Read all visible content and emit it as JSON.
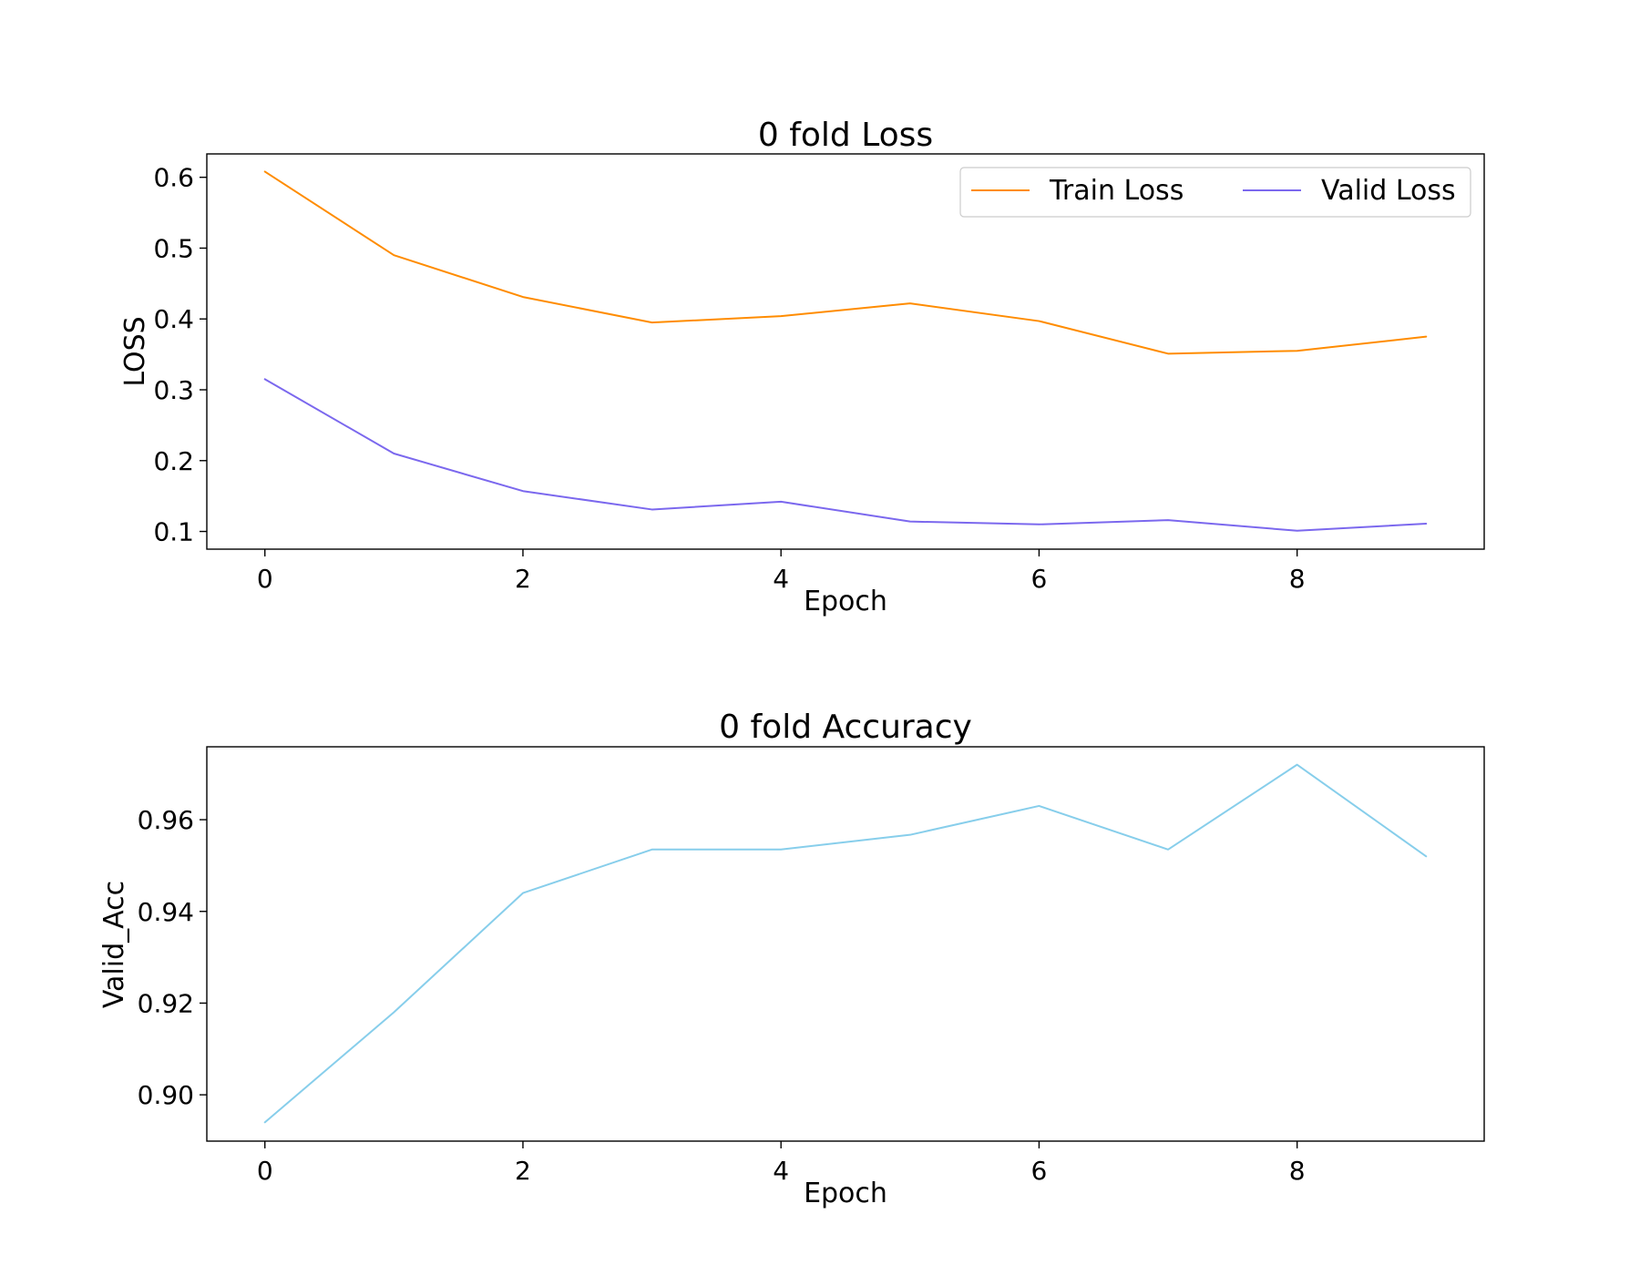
{
  "chart_data": [
    {
      "type": "line",
      "title": "0 fold Loss",
      "xlabel": "Epoch",
      "ylabel": "LOSS",
      "x": [
        0,
        1,
        2,
        3,
        4,
        5,
        6,
        7,
        8,
        9
      ],
      "xlim": [
        -0.45,
        9.45
      ],
      "ylim": [
        0.075,
        0.633
      ],
      "xticks": [
        0,
        2,
        4,
        6,
        8
      ],
      "yticks": [
        0.1,
        0.2,
        0.3,
        0.4,
        0.5,
        0.6
      ],
      "ytick_labels": [
        "0.1",
        "0.2",
        "0.3",
        "0.4",
        "0.5",
        "0.6"
      ],
      "grid": false,
      "legend": "top-right",
      "series": [
        {
          "name": "Train Loss",
          "color": "#ff8c00",
          "values": [
            0.608,
            0.49,
            0.431,
            0.395,
            0.404,
            0.422,
            0.397,
            0.351,
            0.355,
            0.375
          ]
        },
        {
          "name": "Valid Loss",
          "color": "#7b68ee",
          "values": [
            0.315,
            0.21,
            0.157,
            0.131,
            0.142,
            0.114,
            0.11,
            0.116,
            0.101,
            0.111
          ]
        }
      ]
    },
    {
      "type": "line",
      "title": "0 fold Accuracy",
      "xlabel": "Epoch",
      "ylabel": "Valid_Acc",
      "x": [
        0,
        1,
        2,
        3,
        4,
        5,
        6,
        7,
        8,
        9
      ],
      "xlim": [
        -0.45,
        9.45
      ],
      "ylim": [
        0.8899,
        0.9759
      ],
      "xticks": [
        0,
        2,
        4,
        6,
        8
      ],
      "yticks": [
        0.9,
        0.92,
        0.94,
        0.96
      ],
      "ytick_labels": [
        "0.90",
        "0.92",
        "0.94",
        "0.96"
      ],
      "grid": false,
      "series": [
        {
          "color": "#87ceeb",
          "values": [
            0.894,
            0.918,
            0.944,
            0.9535,
            0.9535,
            0.9567,
            0.963,
            0.9535,
            0.972,
            0.952
          ]
        }
      ]
    }
  ]
}
